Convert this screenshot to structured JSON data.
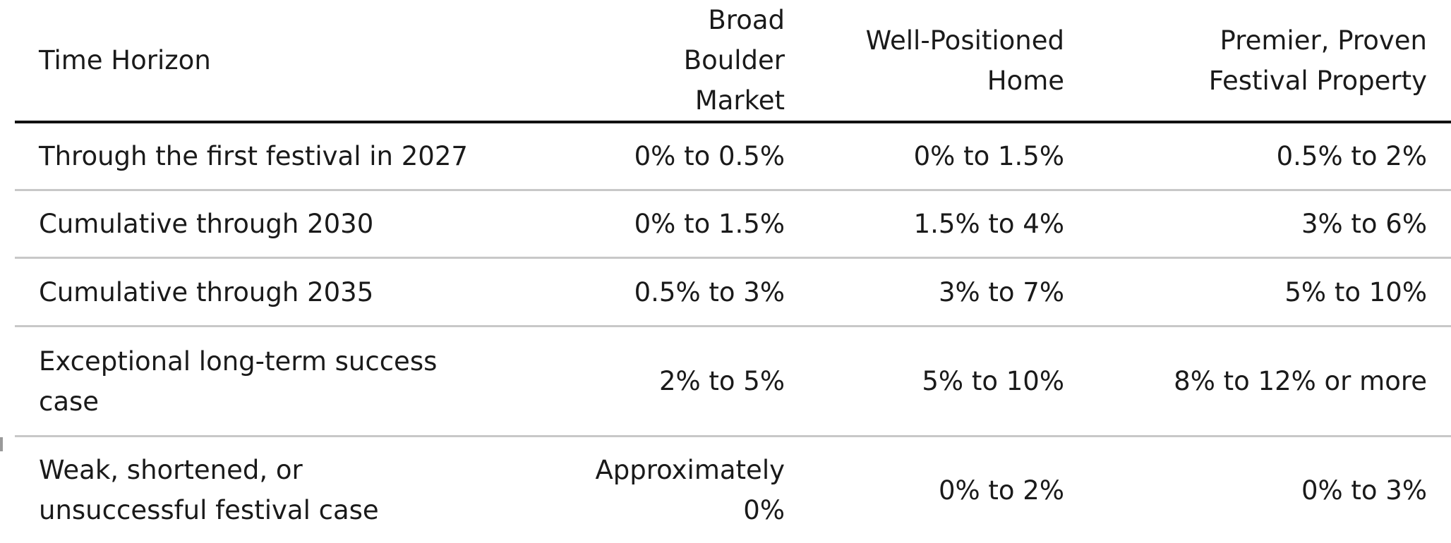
{
  "table": {
    "headers": [
      "Time Horizon",
      "Broad Boulder Market",
      "Well-Positioned Home",
      "Premier, Proven Festival Property"
    ],
    "rows": [
      [
        "Through the first festival in 2027",
        "0% to 0.5%",
        "0% to 1.5%",
        "0.5% to 2%"
      ],
      [
        "Cumulative through 2030",
        "0% to 1.5%",
        "1.5% to 4%",
        "3% to 6%"
      ],
      [
        "Cumulative through 2035",
        "0.5% to 3%",
        "3% to 7%",
        "5% to 10%"
      ],
      [
        "Exceptional long-term success case",
        "2% to 5%",
        "5% to 10%",
        "8% to 12% or more"
      ],
      [
        "Weak, shortened, or unsuccessful festival case",
        "Approximately 0%",
        "0% to 2%",
        "0% to 3%"
      ]
    ]
  }
}
